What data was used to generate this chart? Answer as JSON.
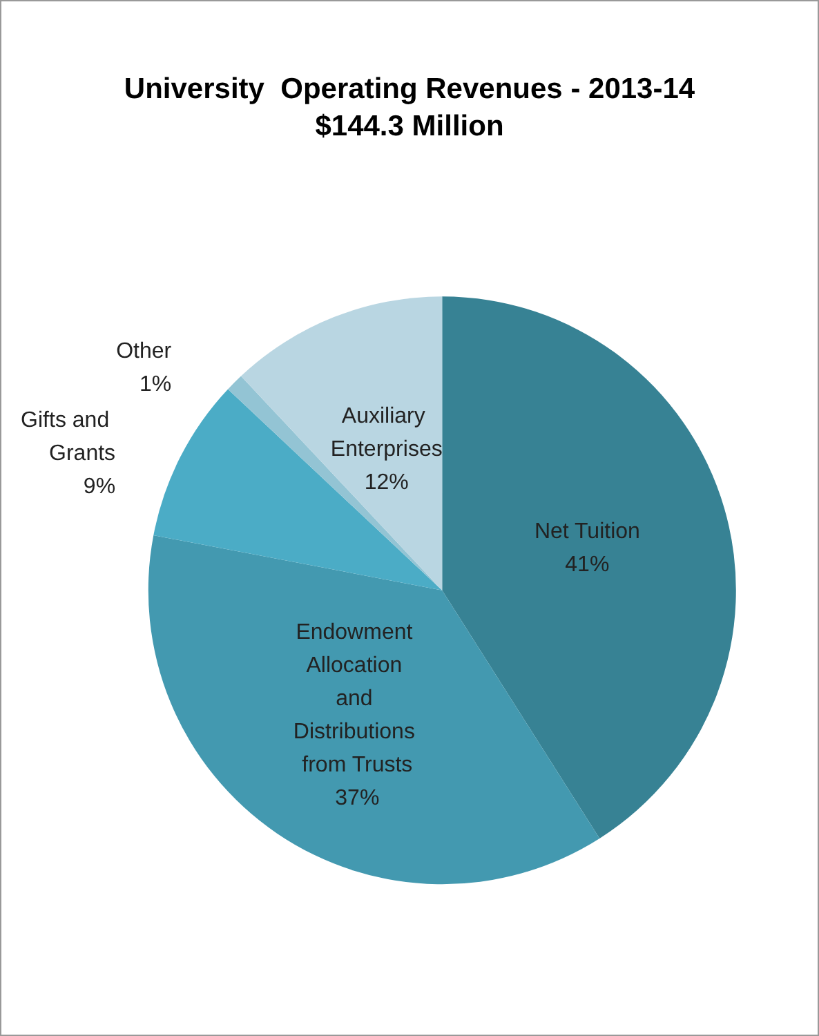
{
  "chart_data": {
    "type": "pie",
    "title": "University  Operating Revenues - 2013-14",
    "subtitle": "$144.3 Million",
    "categories": [
      "Net Tuition",
      "Endowment Allocation and Distributions from Trusts",
      "Gifts and Grants",
      "Other",
      "Auxiliary Enterprises"
    ],
    "values": [
      41,
      37,
      9,
      1,
      12
    ],
    "colors": [
      "#378294",
      "#4399b0",
      "#4bacc6",
      "#93c4d4",
      "#b9d6e2"
    ],
    "value_labels": [
      "41%",
      "37%",
      "9%",
      "1%",
      "12%"
    ]
  }
}
